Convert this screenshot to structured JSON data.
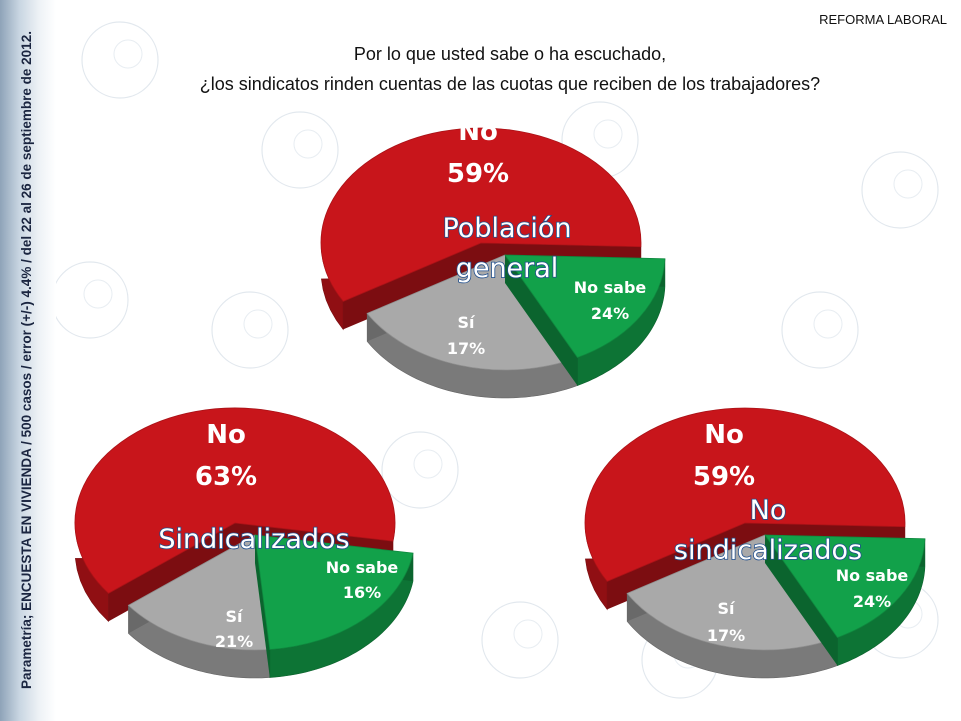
{
  "header": {
    "tag": "REFORMA LABORAL",
    "question_line1": "Por lo que usted sabe o ha escuchado,",
    "question_line2": "¿los sindicatos rinden cuentas de las cuotas que reciben de los trabajadores?"
  },
  "sidebar": {
    "note": "Parametría; ENCUESTA EN VIVIENDA / 500 casos / error (+/-) 4.4% / del 22 al 26 de septiembre de 2012."
  },
  "colors": {
    "no": "#c8151b",
    "si": "#12a14a",
    "nosabe": "#a9a9a9"
  },
  "chart_data": [
    {
      "type": "pie",
      "title": [
        "Población",
        "general"
      ],
      "labels": [
        "No",
        "Sí",
        "No sabe"
      ],
      "values": [
        59,
        17,
        24
      ],
      "value_labels": [
        "59%",
        "17%",
        "24%"
      ]
    },
    {
      "type": "pie",
      "title": [
        "Sindicalizados"
      ],
      "labels": [
        "No",
        "Sí",
        "No sabe"
      ],
      "values": [
        63,
        21,
        16
      ],
      "value_labels": [
        "63%",
        "21%",
        "16%"
      ]
    },
    {
      "type": "pie",
      "title": [
        "No",
        "sindicalizados"
      ],
      "labels": [
        "No",
        "Sí",
        "No sabe"
      ],
      "values": [
        59,
        17,
        24
      ],
      "value_labels": [
        "59%",
        "17%",
        "24%"
      ]
    }
  ]
}
